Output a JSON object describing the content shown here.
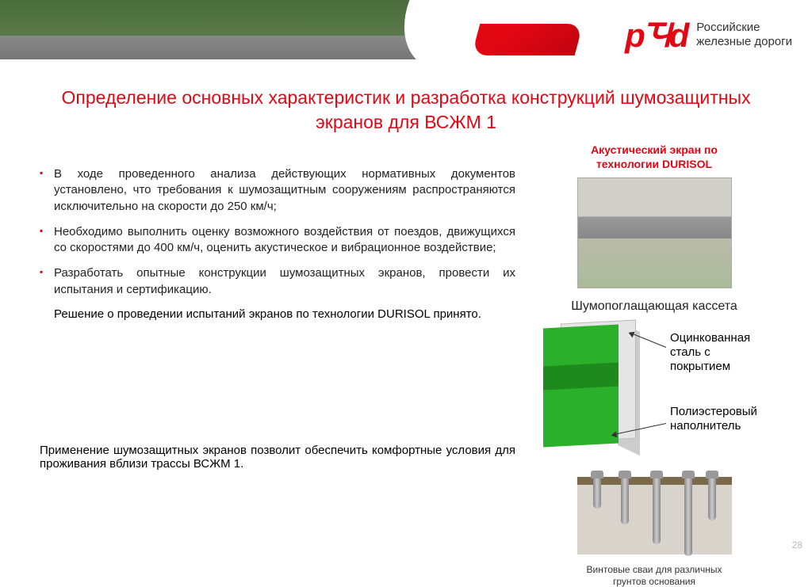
{
  "header": {
    "logo_mark": "pꚒd",
    "logo_line1": "Российские",
    "logo_line2": "железные дороги"
  },
  "title": "Определение основных характеристик и разработка  конструкций шумозащитных экранов для ВСЖМ 1",
  "bullets": [
    "В ходе проведенного анализа действующих нормативных документов установлено, что требования к шумозащитным сооружениям распространяются исключительно на скорости  до 250 км/ч;",
    "Необходимо выполнить оценку возможного воздействия от поездов, движущихся со скоростями до 400 км/ч, оценить акустическое и вибрационное воздействие;",
    "Разработать опытные конструкции шумозащитных экранов, провести их испытания и сертификацию."
  ],
  "decision": "Решение о проведении испытаний экранов по технологии DURISOL принято.",
  "bottom": "Применение шумозащитных экранов позволит обеспечить комфортные условия для проживания вблизи трассы ВСЖМ 1.",
  "right": {
    "caption_red_l1": "Акустический экран по",
    "caption_red_l2": "технологии DURISOL",
    "cassette_title": "Шумопоглащающая кассета",
    "label1_l1": "Оцинкованная",
    "label1_l2": "сталь с",
    "label1_l3": "покрытием",
    "label2_l1": "Полиэстеровый",
    "label2_l2": "наполнитель",
    "piles_l1": "Винтовые сваи для различных",
    "piles_l2": "грунтов основания"
  },
  "page_number": "28"
}
